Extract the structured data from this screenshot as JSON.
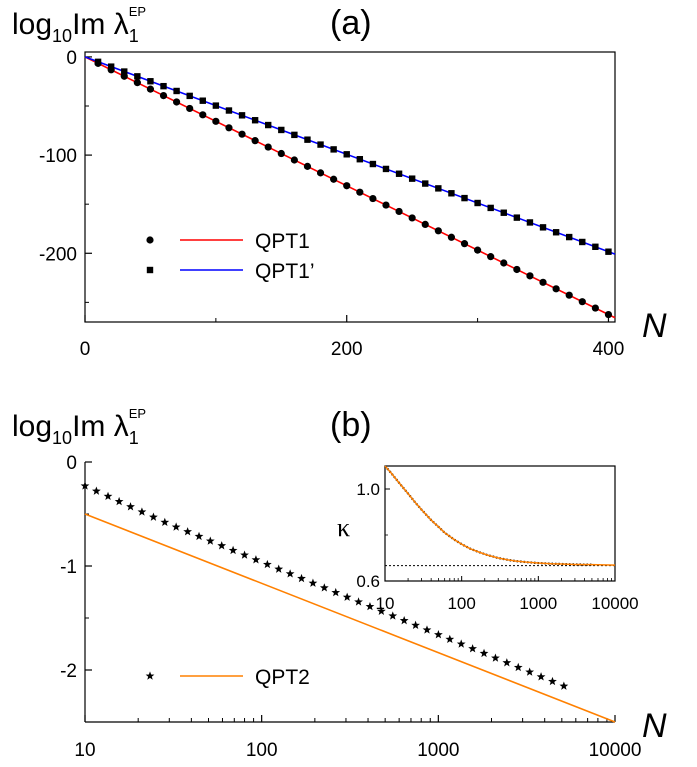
{
  "chart_data": [
    {
      "id": "a",
      "type": "scatter",
      "panel_label": "(a)",
      "ylabel": {
        "base": "log",
        "sub": "10",
        "main": "Im λ",
        "low": "1",
        "sup": "EP"
      },
      "xlabel": "N",
      "xlim": [
        0,
        405
      ],
      "ylim": [
        -270,
        5
      ],
      "xticks": [
        0,
        200,
        400
      ],
      "yticks": [
        0,
        -100,
        -200
      ],
      "x": [
        10,
        20,
        30,
        40,
        50,
        60,
        70,
        80,
        90,
        100,
        110,
        120,
        130,
        140,
        150,
        160,
        170,
        180,
        190,
        200,
        210,
        220,
        230,
        240,
        250,
        260,
        270,
        280,
        290,
        300,
        310,
        320,
        330,
        340,
        350,
        360,
        370,
        380,
        390,
        400
      ],
      "series": [
        {
          "name": "QPT1",
          "marker": "circle",
          "color": "#ff0000",
          "fit_slope": -0.656,
          "fit_intercept": 0,
          "values": [
            -6.6,
            -13.1,
            -19.7,
            -26.2,
            -32.8,
            -39.4,
            -45.9,
            -52.5,
            -59.0,
            -65.6,
            -72.2,
            -78.7,
            -85.3,
            -91.8,
            -98.4,
            -105.0,
            -111.5,
            -118.1,
            -124.6,
            -131.2,
            -137.8,
            -144.3,
            -150.9,
            -157.4,
            -164.0,
            -170.6,
            -177.1,
            -183.7,
            -190.2,
            -196.8,
            -203.4,
            -209.9,
            -216.5,
            -223.0,
            -229.6,
            -236.2,
            -242.7,
            -249.3,
            -255.8,
            -262.4
          ]
        },
        {
          "name": "QPT1’",
          "marker": "square",
          "color": "#0000ff",
          "fit_slope": -0.496,
          "fit_intercept": 0,
          "values": [
            -5.0,
            -9.9,
            -14.9,
            -19.8,
            -24.8,
            -29.8,
            -34.7,
            -39.7,
            -44.6,
            -49.6,
            -54.6,
            -59.5,
            -64.5,
            -69.4,
            -74.4,
            -79.4,
            -84.3,
            -89.3,
            -94.2,
            -99.2,
            -104.2,
            -109.1,
            -114.1,
            -119.0,
            -124.0,
            -129.0,
            -133.9,
            -138.9,
            -143.8,
            -148.8,
            -153.8,
            -158.7,
            -163.7,
            -168.6,
            -173.6,
            -178.6,
            -183.5,
            -188.5,
            -193.4,
            -198.4
          ]
        }
      ],
      "fit_range": [
        0,
        405
      ],
      "legend_position": "lower-left"
    },
    {
      "id": "b",
      "type": "scatter",
      "panel_label": "(b)",
      "ylabel": {
        "base": "log",
        "sub": "10",
        "main": "Im λ",
        "low": "1",
        "sup": "EP"
      },
      "xlabel": "N",
      "xscale": "log",
      "xlim": [
        10,
        10000
      ],
      "ylim": [
        -2.5,
        0
      ],
      "xticks": [
        10,
        100,
        1000,
        10000
      ],
      "yticks": [
        0,
        -1,
        -2
      ],
      "series": [
        {
          "name": "",
          "marker": "star",
          "color": "#000000",
          "x": [
            10,
            11.6,
            13.5,
            15.6,
            18.1,
            21,
            24.4,
            28.3,
            32.8,
            38.1,
            44.2,
            51.2,
            59.4,
            68.9,
            80,
            92.8,
            107.7,
            124.9,
            144.9,
            168.1,
            195.1,
            226.3,
            262.6,
            304.7,
            353.5,
            410.2,
            475.9,
            552.2,
            640.7,
            743.4,
            862.6,
            1000.8,
            1161.3,
            1347.4,
            1563.4,
            1814,
            2104.8,
            2442.1,
            2833.5,
            3287.7,
            3814.7,
            4426.1,
            5135.5
          ],
          "values": [
            -0.23,
            -0.28,
            -0.33,
            -0.38,
            -0.43,
            -0.48,
            -0.53,
            -0.58,
            -0.625,
            -0.67,
            -0.715,
            -0.76,
            -0.805,
            -0.85,
            -0.895,
            -0.94,
            -0.985,
            -1.03,
            -1.075,
            -1.12,
            -1.165,
            -1.21,
            -1.255,
            -1.3,
            -1.345,
            -1.39,
            -1.435,
            -1.48,
            -1.525,
            -1.57,
            -1.615,
            -1.66,
            -1.705,
            -1.75,
            -1.795,
            -1.84,
            -1.885,
            -1.93,
            -1.975,
            -2.02,
            -2.065,
            -2.11,
            -2.155
          ]
        },
        {
          "name": "QPT2",
          "marker": "line",
          "color": "#ff8000",
          "x": [
            10,
            10000
          ],
          "values": [
            -0.5,
            -2.5
          ]
        }
      ],
      "legend_position": "lower-left",
      "inset": {
        "type": "line",
        "ylabel": "κ",
        "xscale": "log",
        "xlim": [
          10,
          10000
        ],
        "ylim": [
          0.6,
          1.1
        ],
        "xticks": [
          10,
          100,
          1000,
          10000
        ],
        "yticks": [
          1.0,
          0.6
        ],
        "ytick_labels": [
          "1.0",
          "0.6"
        ],
        "asymptote": 0.667,
        "series": [
          {
            "name": "",
            "color": "#000000",
            "style": "dotted",
            "x": [
              10,
              12,
              15,
              20,
              25,
              30,
              40,
              50,
              60,
              80,
              100,
              130,
              170,
              220,
              300,
              400,
              500,
              700,
              1000,
              1500,
              2000,
              3000,
              5000
            ],
            "values": [
              1.1,
              1.07,
              1.03,
              0.98,
              0.94,
              0.91,
              0.865,
              0.835,
              0.81,
              0.78,
              0.76,
              0.74,
              0.725,
              0.712,
              0.7,
              0.692,
              0.687,
              0.682,
              0.678,
              0.675,
              0.674,
              0.672,
              0.671
            ]
          },
          {
            "name": "",
            "color": "#ff8000",
            "style": "solid",
            "x": [
              10,
              12,
              15,
              20,
              25,
              30,
              40,
              50,
              60,
              80,
              100,
              130,
              170,
              220,
              300,
              400,
              500,
              700,
              1000,
              1500,
              2000,
              3000,
              5000,
              10000
            ],
            "values": [
              1.1,
              1.07,
              1.03,
              0.98,
              0.94,
              0.91,
              0.865,
              0.835,
              0.81,
              0.78,
              0.76,
              0.74,
              0.725,
              0.712,
              0.7,
              0.692,
              0.687,
              0.682,
              0.678,
              0.675,
              0.674,
              0.672,
              0.671,
              0.669
            ]
          }
        ]
      }
    }
  ]
}
